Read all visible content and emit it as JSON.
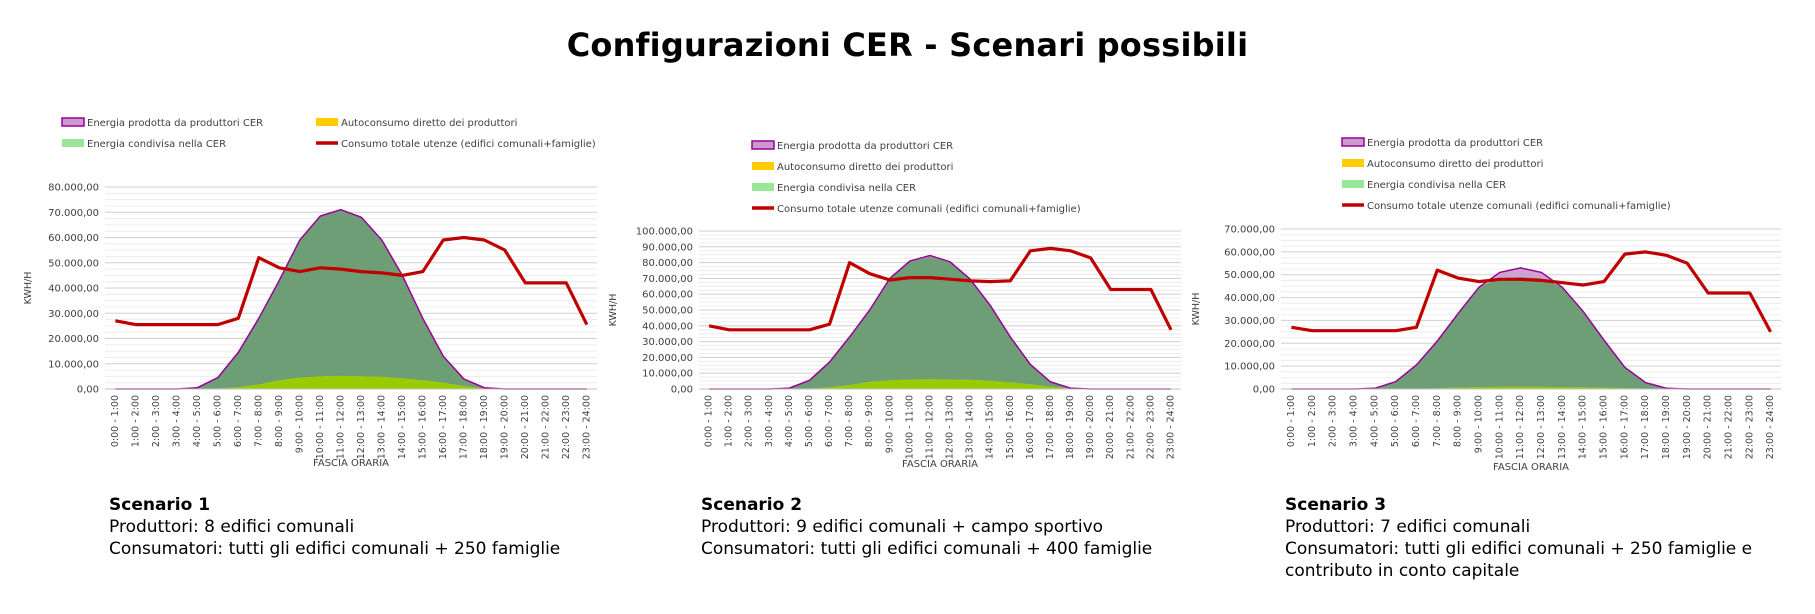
{
  "page": {
    "title": "Configurazioni CER - Scenari possibili"
  },
  "captions": [
    {
      "title": "Scenario 1",
      "lines": [
        "Produttori: 8 edifici comunali",
        "Consumatori: tutti gli edifici comunali + 250 famiglie"
      ]
    },
    {
      "title": "Scenario 2",
      "lines": [
        "Produttori: 9 edifici comunali + campo sportivo",
        "Consumatori: tutti gli edifici comunali + 400 famiglie"
      ]
    },
    {
      "title": "Scenario 3",
      "lines": [
        "Produttori: 7 edifici comunali",
        "Consumatori: tutti gli edifici comunali + 250 famiglie e",
        "contributo in conto capitale"
      ]
    }
  ],
  "colors": {
    "produced_fill": "#cc99cc",
    "produced_line": "#990099",
    "self_fill": "#99cc00",
    "legend_self": "#ffcc00",
    "shared_fill": "#5d9e66",
    "legend_shared": "#99e699",
    "consumption": "#c00000",
    "grid": "#d9d9d9"
  },
  "chart_data": [
    {
      "type": "area",
      "xlabel": "FASCIA ORARIA",
      "ylabel": "KWH/H",
      "ylim": [
        0,
        80000
      ],
      "ytick_step": 10000,
      "ytick_labels": [
        "0,00",
        "10.000,00",
        "20.000,00",
        "30.000,00",
        "40.000,00",
        "50.000,00",
        "60.000,00",
        "70.000,00",
        "80.000,00"
      ],
      "legend_layout": "two-columns",
      "categories": [
        "0:00 - 1:00",
        "1:00 - 2:00",
        "2:00 - 3:00",
        "3:00 - 4:00",
        "4:00 - 5:00",
        "5:00 - 6:00",
        "6:00 - 7:00",
        "7:00 - 8:00",
        "8:00 - 9:00",
        "9:00 - 10:00",
        "10:00 - 11:00",
        "11:00 - 12:00",
        "12:00 - 13:00",
        "13:00 - 14:00",
        "14:00 - 15:00",
        "15:00 - 16:00",
        "16:00 - 17:00",
        "17:00 - 18:00",
        "18:00 - 19:00",
        "19:00 - 20:00",
        "20:00 - 21:00",
        "21:00 - 22:00",
        "22:00 - 23:00",
        "23:00 - 24:00"
      ],
      "series": [
        {
          "name": "Energia prodotta da produttori CER",
          "kind": "area",
          "values": [
            0,
            0,
            0,
            0,
            500,
            4500,
            14500,
            28000,
            43000,
            59000,
            68500,
            71000,
            68000,
            59000,
            45000,
            28000,
            13000,
            4000,
            500,
            0,
            0,
            0,
            0,
            0
          ]
        },
        {
          "name": "Autoconsumo diretto dei produttori",
          "kind": "area",
          "values": [
            0,
            0,
            0,
            0,
            0,
            200,
            700,
            1800,
            3500,
            4500,
            5000,
            5200,
            5000,
            4800,
            4200,
            3500,
            2500,
            1200,
            200,
            0,
            0,
            0,
            0,
            0
          ]
        },
        {
          "name": "Energia condivisa nella CER",
          "kind": "area",
          "values": [
            0,
            0,
            0,
            0,
            500,
            4300,
            13800,
            26200,
            39500,
            54500,
            63500,
            65800,
            63000,
            54200,
            40800,
            24500,
            10500,
            2800,
            300,
            0,
            0,
            0,
            0,
            0
          ]
        },
        {
          "name": "Consumo totale utenze (edifici comunali+famiglie)",
          "kind": "line",
          "values": [
            27000,
            25500,
            25500,
            25500,
            25500,
            25500,
            28000,
            52000,
            48000,
            46500,
            48000,
            47500,
            46500,
            46000,
            45000,
            46500,
            59000,
            60000,
            59000,
            55000,
            42000,
            42000,
            42000,
            25500
          ]
        }
      ]
    },
    {
      "type": "area",
      "xlabel": "FASCIA ORARIA",
      "ylabel": "KWH/H",
      "ylim": [
        0,
        100000
      ],
      "ytick_step": 10000,
      "ytick_labels": [
        "0,00",
        "10.000,00",
        "20.000,00",
        "30.000,00",
        "40.000,00",
        "50.000,00",
        "60.000,00",
        "70.000,00",
        "80.000,00",
        "90.000,00",
        "100.000,00"
      ],
      "legend_layout": "single-column",
      "categories": [
        "0:00 - 1:00",
        "1:00 - 2:00",
        "2:00 - 3:00",
        "3:00 - 4:00",
        "4:00 - 5:00",
        "5:00 - 6:00",
        "6:00 - 7:00",
        "7:00 - 8:00",
        "8:00 - 9:00",
        "9:00 - 10:00",
        "10:00 - 11:00",
        "11:00 - 12:00",
        "12:00 - 13:00",
        "13:00 - 14:00",
        "14:00 - 15:00",
        "15:00 - 16:00",
        "16:00 - 17:00",
        "17:00 - 18:00",
        "18:00 - 19:00",
        "19:00 - 20:00",
        "20:00 - 21:00",
        "21:00 - 22:00",
        "22:00 - 23:00",
        "23:00 - 24:00"
      ],
      "series": [
        {
          "name": "Energia prodotta da produttori CER",
          "kind": "area",
          "values": [
            0,
            0,
            0,
            0,
            600,
            5500,
            17000,
            33000,
            50000,
            70000,
            81000,
            84500,
            80500,
            69500,
            53000,
            33000,
            15500,
            4500,
            600,
            0,
            0,
            0,
            0,
            0
          ]
        },
        {
          "name": "Autoconsumo diretto dei produttori",
          "kind": "area",
          "values": [
            0,
            0,
            0,
            0,
            0,
            300,
            1000,
            2500,
            4500,
            5500,
            6000,
            6200,
            6000,
            5800,
            5200,
            4200,
            3000,
            1500,
            300,
            0,
            0,
            0,
            0,
            0
          ]
        },
        {
          "name": "Energia condivisa nella CER",
          "kind": "area",
          "values": [
            0,
            0,
            0,
            0,
            600,
            5200,
            16000,
            30500,
            45500,
            64000,
            74500,
            77500,
            74000,
            63500,
            47500,
            28500,
            12500,
            3000,
            300,
            0,
            0,
            0,
            0,
            0
          ]
        },
        {
          "name": "Consumo totale utenze comunali (edifici comunali+famiglie)",
          "kind": "line",
          "values": [
            40000,
            37500,
            37500,
            37500,
            37500,
            37500,
            41000,
            80000,
            73000,
            69000,
            70500,
            70500,
            69500,
            68500,
            68000,
            68500,
            87500,
            89000,
            87500,
            83000,
            63000,
            63000,
            63000,
            37500
          ]
        }
      ]
    },
    {
      "type": "area",
      "xlabel": "FASCIA ORARIA",
      "ylabel": "KWH/H",
      "ylim": [
        0,
        70000
      ],
      "ytick_step": 10000,
      "ytick_labels": [
        "0,00",
        "10.000,00",
        "20.000,00",
        "30.000,00",
        "40.000,00",
        "50.000,00",
        "60.000,00",
        "70.000,00"
      ],
      "legend_layout": "single-column",
      "categories": [
        "0:00 - 1:00",
        "1:00 - 2:00",
        "2:00 - 3:00",
        "3:00 - 4:00",
        "4:00 - 5:00",
        "5:00 - 6:00",
        "6:00 - 7:00",
        "7:00 - 8:00",
        "8:00 - 9:00",
        "9:00 - 10:00",
        "10:00 - 11:00",
        "11:00 - 12:00",
        "12:00 - 13:00",
        "13:00 - 14:00",
        "14:00 - 15:00",
        "15:00 - 16:00",
        "16:00 - 17:00",
        "17:00 - 18:00",
        "18:00 - 19:00",
        "19:00 - 20:00",
        "20:00 - 21:00",
        "21:00 - 22:00",
        "22:00 - 23:00",
        "23:00 - 24:00"
      ],
      "series": [
        {
          "name": "Energia prodotta da produttori CER",
          "kind": "area",
          "values": [
            0,
            0,
            0,
            0,
            300,
            3200,
            10500,
            21000,
            33000,
            44500,
            51000,
            53000,
            51000,
            44500,
            34000,
            21500,
            9500,
            2800,
            300,
            0,
            0,
            0,
            0,
            0
          ]
        },
        {
          "name": "Autoconsumo diretto dei produttori",
          "kind": "area",
          "values": [
            0,
            0,
            0,
            0,
            0,
            50,
            150,
            350,
            600,
            800,
            900,
            950,
            900,
            850,
            700,
            550,
            400,
            200,
            50,
            0,
            0,
            0,
            0,
            0
          ]
        },
        {
          "name": "Energia condivisa nella CER",
          "kind": "area",
          "values": [
            0,
            0,
            0,
            0,
            300,
            3150,
            10350,
            20650,
            32400,
            43700,
            47500,
            48000,
            47500,
            43650,
            33300,
            20950,
            9100,
            2600,
            250,
            0,
            0,
            0,
            0,
            0
          ]
        },
        {
          "name": "Consumo totale utenze comunali (edifici comunali+famiglie)",
          "kind": "line",
          "values": [
            27000,
            25500,
            25500,
            25500,
            25500,
            25500,
            27000,
            52000,
            48500,
            47000,
            48000,
            48000,
            47500,
            46500,
            45500,
            47000,
            59000,
            60000,
            58500,
            55000,
            42000,
            42000,
            42000,
            25000
          ]
        }
      ]
    }
  ]
}
